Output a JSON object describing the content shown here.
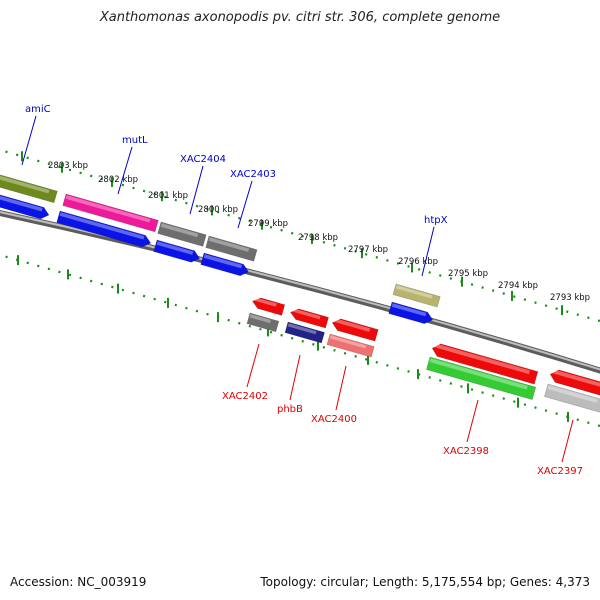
{
  "title": "Xanthomonas axonopodis pv. citri str. 306, complete genome",
  "footer": {
    "accession": "Accession: NC_003919",
    "topology": "Topology: circular; Length: 5,175,554 bp; Genes: 4,373"
  },
  "scale_labels": [
    "2803 kbp",
    "2802 kbp",
    "2801 kbp",
    "2800 kbp",
    "2799 kbp",
    "2798 kbp",
    "2797 kbp",
    "2796 kbp",
    "2795 kbp",
    "2794 kbp",
    "2793 kbp"
  ],
  "colors": {
    "backbone": "#8a8a8a",
    "tick": "#1a8a1a",
    "label_forward": "#0000cc",
    "label_reverse": "#dd0000",
    "blue": "#0a14e6",
    "olive": "#6e8a1e",
    "magenta": "#ee1a99",
    "gray": "#6e6e6e",
    "khaki": "#b8b46e",
    "red": "#ee0a0a",
    "pink": "#ee7070",
    "green": "#33cc33",
    "lightgray": "#bcbcbc",
    "navy": "#222288"
  },
  "gene_labels": [
    {
      "text": "amiC",
      "strand": "forward"
    },
    {
      "text": "mutL",
      "strand": "forward"
    },
    {
      "text": "XAC2404",
      "strand": "forward"
    },
    {
      "text": "XAC2403",
      "strand": "forward"
    },
    {
      "text": "htpX",
      "strand": "forward"
    },
    {
      "text": "XAC2402",
      "strand": "reverse"
    },
    {
      "text": "phbB",
      "strand": "reverse"
    },
    {
      "text": "XAC2400",
      "strand": "reverse"
    },
    {
      "text": "XAC2398",
      "strand": "reverse"
    },
    {
      "text": "XAC2397",
      "strand": "reverse"
    }
  ]
}
